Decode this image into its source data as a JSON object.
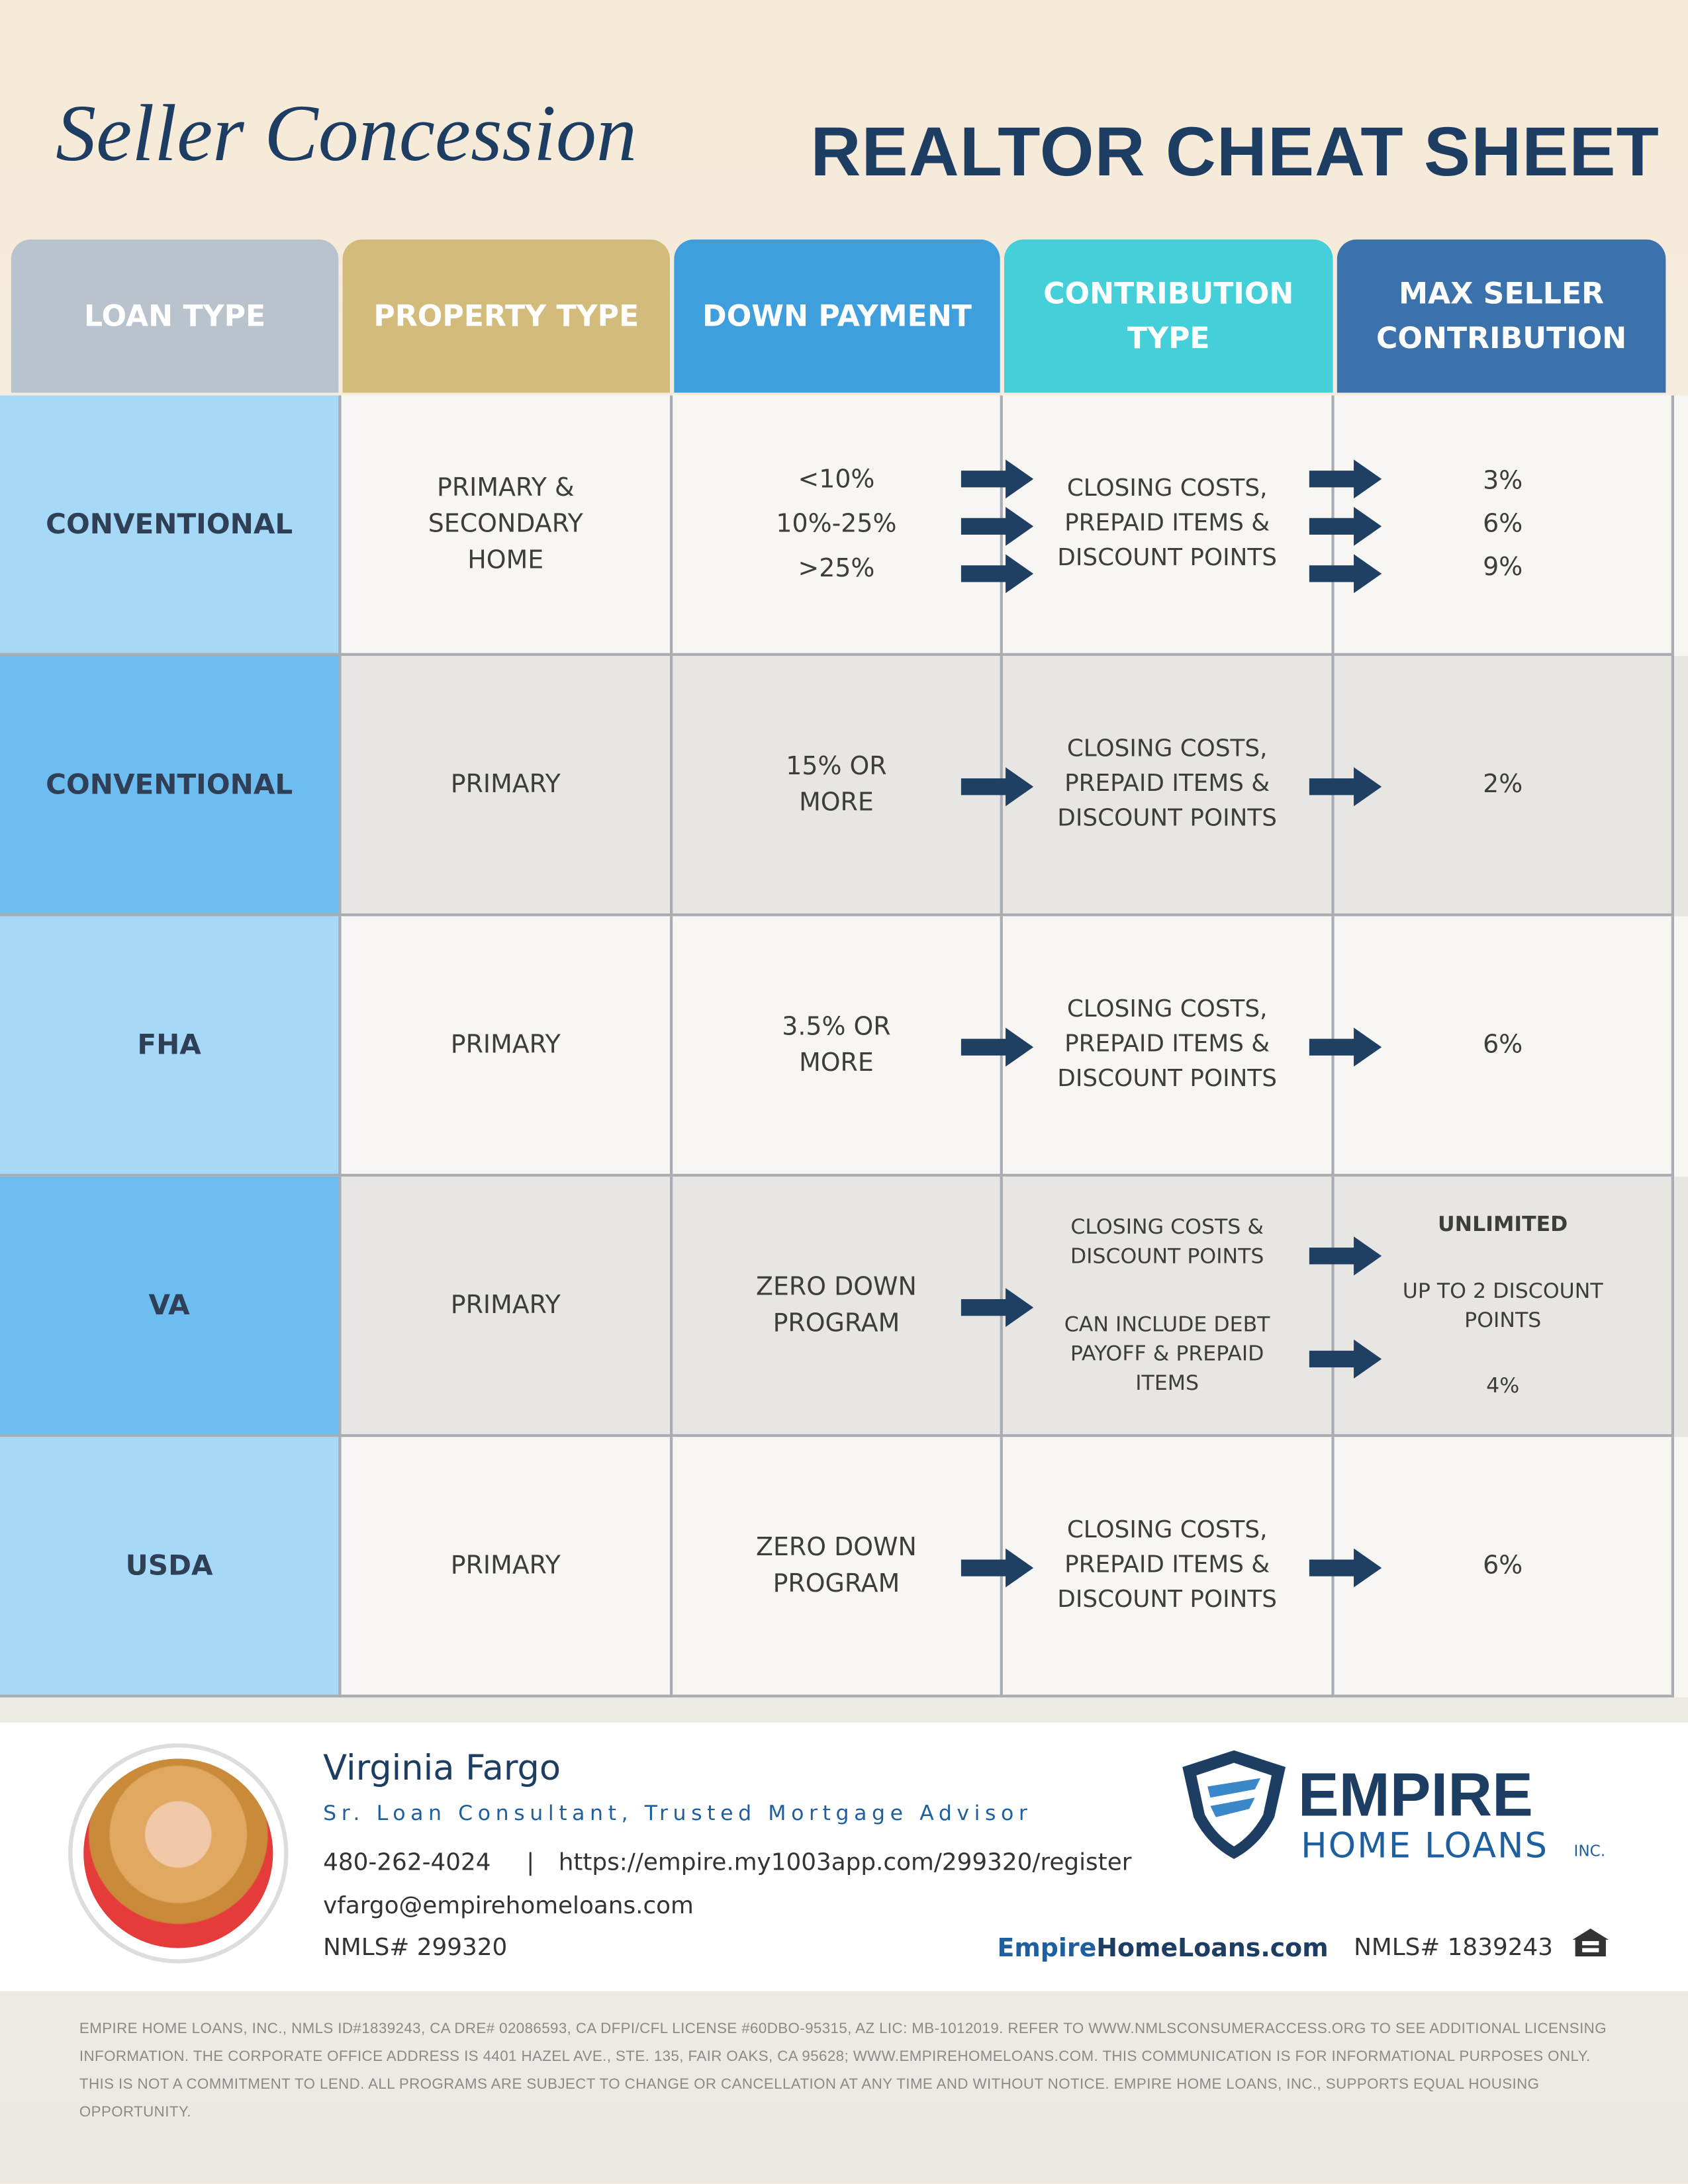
{
  "header": {
    "script_title": "Seller Concession",
    "title": "REALTOR CHEAT SHEET"
  },
  "table": {
    "headers": [
      "LOAN TYPE",
      "PROPERTY TYPE",
      "DOWN PAYMENT",
      "CONTRIBUTION TYPE",
      "MAX SELLER CONTRIBUTION"
    ],
    "rows": [
      {
        "loan_type": "CONVENTIONAL",
        "property_type": "PRIMARY & SECONDARY HOME",
        "down_payment": [
          "<10%",
          "10%-25%",
          ">25%"
        ],
        "contribution_type": [
          "CLOSING COSTS, PREPAID ITEMS & DISCOUNT POINTS"
        ],
        "max_contribution": [
          "3%",
          "6%",
          "9%"
        ]
      },
      {
        "loan_type": "CONVENTIONAL",
        "property_type": "PRIMARY",
        "down_payment": [
          "15% OR MORE"
        ],
        "contribution_type": [
          "CLOSING COSTS, PREPAID ITEMS & DISCOUNT POINTS"
        ],
        "max_contribution": [
          "2%"
        ]
      },
      {
        "loan_type": "FHA",
        "property_type": "PRIMARY",
        "down_payment": [
          "3.5% OR MORE"
        ],
        "contribution_type": [
          "CLOSING COSTS, PREPAID ITEMS & DISCOUNT POINTS"
        ],
        "max_contribution": [
          "6%"
        ]
      },
      {
        "loan_type": "VA",
        "property_type": "PRIMARY",
        "down_payment": [
          "ZERO DOWN PROGRAM"
        ],
        "contribution_type": [
          "CLOSING COSTS & DISCOUNT POINTS",
          "CAN INCLUDE DEBT PAYOFF & PREPAID ITEMS"
        ],
        "max_contribution": [
          "UNLIMITED",
          "UP TO 2 DISCOUNT POINTS",
          "4%"
        ]
      },
      {
        "loan_type": "USDA",
        "property_type": "PRIMARY",
        "down_payment": [
          "ZERO DOWN PROGRAM"
        ],
        "contribution_type": [
          "CLOSING COSTS, PREPAID ITEMS & DISCOUNT POINTS"
        ],
        "max_contribution": [
          "6%"
        ]
      }
    ]
  },
  "footer": {
    "name": "Virginia Fargo",
    "role": "Sr. Loan Consultant, Trusted Mortgage Advisor",
    "phone": "480-262-4024",
    "url": "https://empire.my1003app.com/299320/register",
    "email": "vfargo@empirehomeloans.com",
    "nmls": "NMLS# 299320",
    "brand": {
      "name": "EMPIRE",
      "sub": "HOME LOANS",
      "suffix": "INC."
    },
    "website": {
      "first": "Empire",
      "second": "HomeLoans.com"
    },
    "company_nmls": "NMLS# 1839243",
    "disclaimer": "EMPIRE HOME LOANS, INC., NMLS ID#1839243, CA DRE# 02086593, CA DFPI/CFL LICENSE #60DBO-95315, AZ LIC: MB-1012019. REFER TO WWW.NMLSCONSUMERACCESS.ORG TO SEE ADDITIONAL LICENSING INFORMATION. THE CORPORATE OFFICE ADDRESS IS 4401 HAZEL AVE., STE. 135, FAIR OAKS, CA 95628; WWW.EMPIREHOMELOANS.COM. THIS COMMUNICATION IS FOR INFORMATIONAL PURPOSES ONLY. THIS IS NOT A COMMITMENT TO LEND. ALL PROGRAMS ARE SUBJECT TO CHANGE OR CANCELLATION AT ANY TIME AND WITHOUT NOTICE. EMPIRE HOME LOANS, INC., SUPPORTS EQUAL HOUSING OPPORTUNITY."
  }
}
